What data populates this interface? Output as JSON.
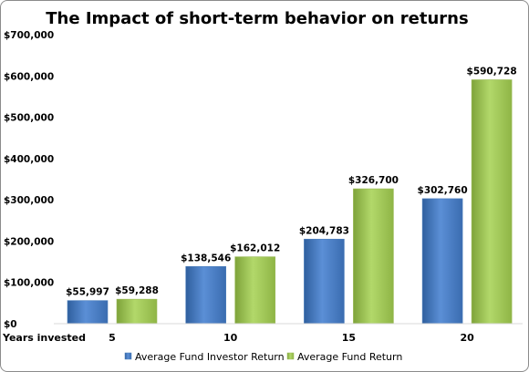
{
  "chart_data": {
    "type": "bar",
    "title": "The Impact of short-term behavior on returns",
    "xlabel": "Years invested",
    "ylabel": "",
    "categories": [
      "5",
      "10",
      "15",
      "20"
    ],
    "ylim": [
      0,
      700000
    ],
    "yticks": [
      0,
      100000,
      200000,
      300000,
      400000,
      500000,
      600000,
      700000
    ],
    "ytick_labels": [
      "$0",
      "$100,000",
      "$200,000",
      "$300,000",
      "$400,000",
      "$500,000",
      "$600,000",
      "$700,000"
    ],
    "series": [
      {
        "name": "Average Fund Investor Return",
        "color": "#4f81bd",
        "values": [
          55997,
          138546,
          204783,
          302760
        ],
        "labels": [
          "$55,997",
          "$138,546",
          "$204,783",
          "$302,760"
        ]
      },
      {
        "name": "Average Fund Return",
        "color": "#9bbb59",
        "values": [
          59288,
          162012,
          326700,
          590728
        ],
        "labels": [
          "$59,288",
          "$162,012",
          "$326,700",
          "$590,728"
        ]
      }
    ],
    "grid": false,
    "legend_position": "bottom"
  }
}
